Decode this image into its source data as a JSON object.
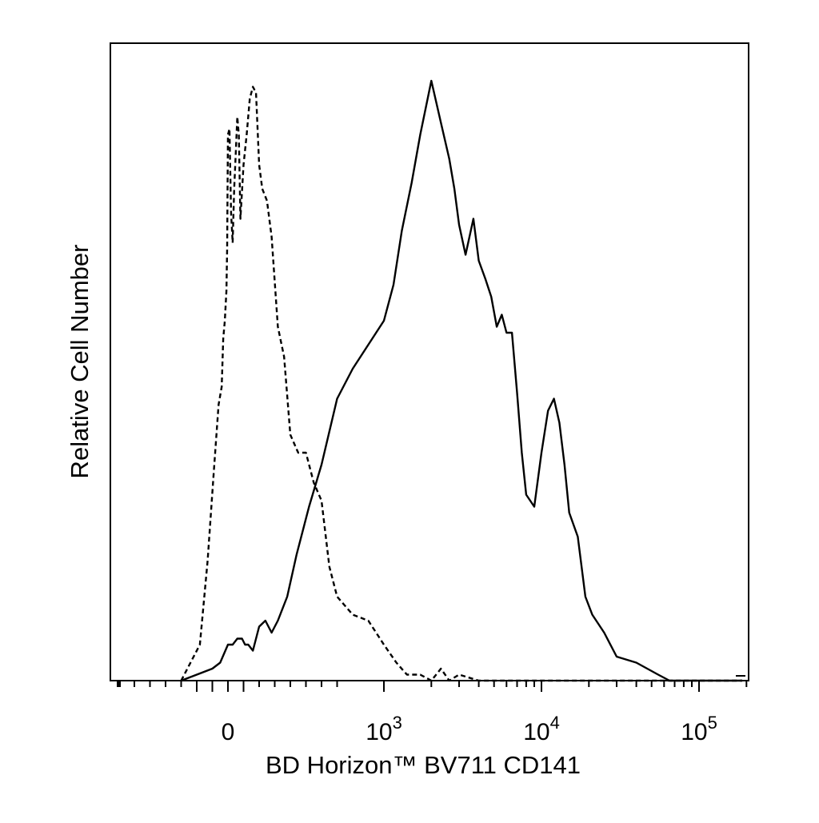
{
  "chart_data": {
    "type": "line",
    "title": "",
    "xlabel": "BD Horizon™ BV711 CD141",
    "ylabel": "Relative Cell Number",
    "x_scale": "biexponential",
    "xlim": [
      -300,
      200000
    ],
    "ylim": [
      0,
      100
    ],
    "grid": false,
    "legend": "none",
    "x_tick_labels": [
      {
        "value": 0,
        "base": "0",
        "exp": ""
      },
      {
        "value": 1000,
        "base": "10",
        "exp": "3"
      },
      {
        "value": 10000,
        "base": "10",
        "exp": "4"
      },
      {
        "value": 100000,
        "base": "10",
        "exp": "5"
      }
    ],
    "series": [
      {
        "style": "dashed",
        "color": "#000000",
        "x": [
          -300,
          -180,
          -130,
          -90,
          -60,
          -40,
          -30,
          -20,
          -10,
          -5,
          0,
          10,
          20,
          30,
          40,
          50,
          60,
          70,
          80,
          100,
          120,
          140,
          160,
          180,
          200,
          220,
          250,
          280,
          320,
          360,
          400,
          450,
          500,
          550,
          600,
          650,
          700,
          800,
          900,
          1000,
          1200,
          1400,
          1700,
          2000,
          2300,
          2600,
          3000,
          4000,
          6000,
          10000,
          30000,
          100000,
          200000
        ],
        "y": [
          0,
          6,
          20,
          35,
          46,
          49,
          57,
          60,
          65,
          72,
          91,
          92,
          78,
          73,
          82,
          88,
          94,
          91,
          77,
          86,
          91,
          97,
          99,
          98,
          86,
          82,
          80,
          74,
          59,
          54,
          41,
          38,
          38,
          33,
          30,
          19,
          14,
          11,
          10,
          6,
          3,
          1,
          1,
          0,
          2,
          0,
          1,
          0,
          0,
          0,
          0,
          0,
          0
        ]
      },
      {
        "style": "solid",
        "color": "#000000",
        "x": [
          -300,
          -100,
          -50,
          0,
          30,
          60,
          90,
          110,
          130,
          160,
          200,
          240,
          280,
          320,
          380,
          440,
          520,
          600,
          700,
          800,
          1000,
          1150,
          1300,
          1500,
          1700,
          2000,
          2300,
          2600,
          2800,
          3000,
          3300,
          3700,
          4000,
          4400,
          4800,
          5200,
          5600,
          6000,
          6500,
          7000,
          7500,
          8000,
          9000,
          10000,
          11000,
          12000,
          13000,
          14000,
          15000,
          17000,
          19000,
          21000,
          25000,
          30000,
          40000,
          55000,
          65000,
          80000,
          120000,
          200000
        ],
        "y": [
          0,
          2,
          3,
          6,
          6,
          7,
          7,
          6,
          6,
          5,
          9,
          10,
          8,
          10,
          14,
          21,
          29,
          36,
          47,
          52,
          60,
          66,
          75,
          83,
          91,
          100,
          93,
          87,
          82,
          76,
          71,
          77,
          70,
          67,
          64,
          59,
          61,
          58,
          58,
          48,
          38,
          31,
          29,
          38,
          45,
          47,
          43,
          36,
          28,
          24,
          14,
          11,
          8,
          4,
          3,
          1,
          0,
          0,
          0,
          0
        ]
      }
    ]
  }
}
